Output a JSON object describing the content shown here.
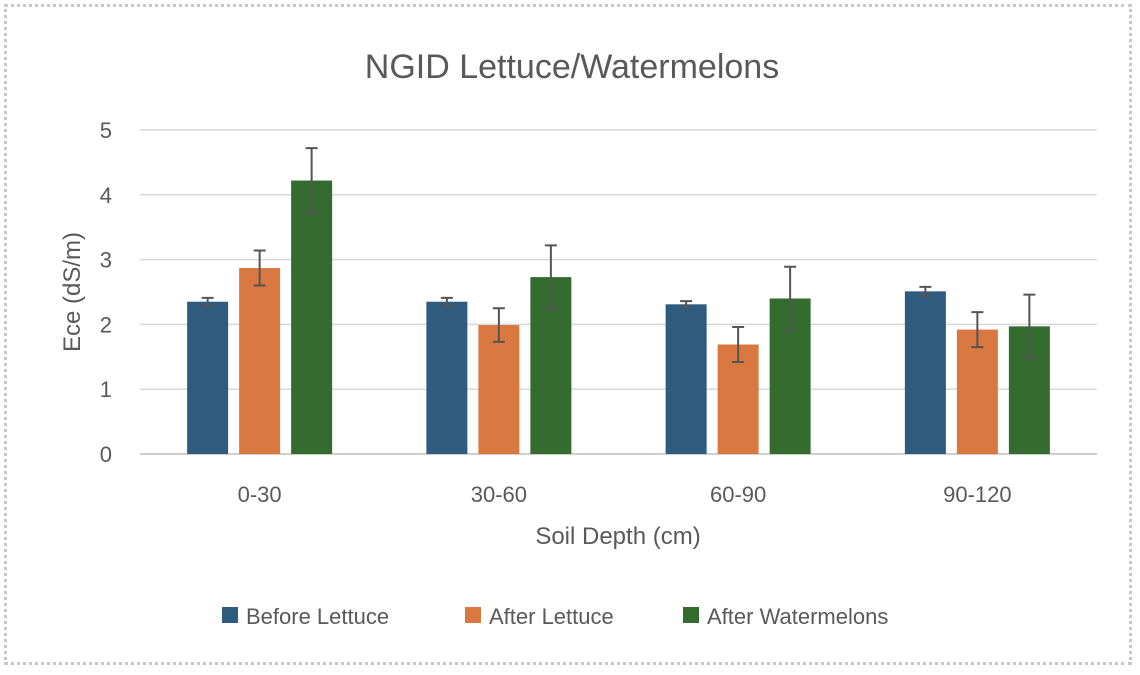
{
  "chart_data": {
    "type": "bar",
    "title": "NGID Lettuce/Watermelons",
    "xlabel": "Soil Depth (cm)",
    "ylabel": "Ece (dS/m)",
    "ylim": [
      0,
      5
    ],
    "yticks": [
      "0",
      "1",
      "2",
      "3",
      "4",
      "5"
    ],
    "categories": [
      "0-30",
      "30-60",
      "60-90",
      "90-120"
    ],
    "series": [
      {
        "name": "Before Lettuce",
        "color": "#2e5b7e",
        "values": [
          2.35,
          2.35,
          2.31,
          2.51
        ],
        "errors": [
          0.06,
          0.06,
          0.05,
          0.07
        ]
      },
      {
        "name": "After Lettuce",
        "color": "#d97840",
        "values": [
          2.87,
          1.99,
          1.69,
          1.92
        ],
        "errors": [
          0.27,
          0.26,
          0.27,
          0.27
        ]
      },
      {
        "name": "After Watermelons",
        "color": "#336c2e",
        "values": [
          4.22,
          2.73,
          2.4,
          1.97
        ],
        "errors": [
          0.5,
          0.49,
          0.49,
          0.49
        ]
      }
    ],
    "grid": true,
    "legend": "bottom"
  }
}
